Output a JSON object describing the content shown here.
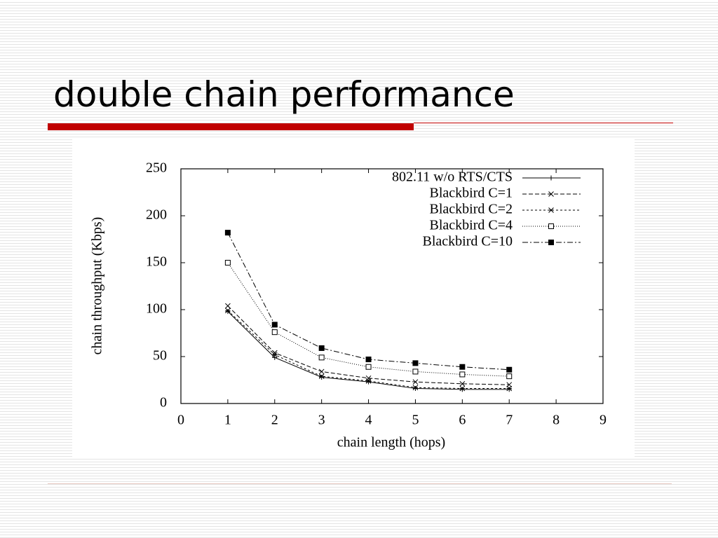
{
  "slide": {
    "title": "double chain performance"
  },
  "chart_data": {
    "type": "line",
    "x_label": "chain length (hops)",
    "y_label": "chain throughput (Kbps)",
    "x": [
      1,
      2,
      3,
      4,
      5,
      6,
      7
    ],
    "series": [
      {
        "name": "802.11 w/o RTS/CTS",
        "color": "#000000",
        "dash": "none",
        "marker": "plus",
        "values": [
          98,
          49,
          28,
          23,
          16,
          15,
          15
        ]
      },
      {
        "name": "Blackbird C=1",
        "color": "#000000",
        "dash": "6,3",
        "marker": "cross",
        "values": [
          104,
          54,
          34,
          27,
          23,
          21,
          20
        ]
      },
      {
        "name": "Blackbird C=2",
        "color": "#000000",
        "dash": "3,3",
        "marker": "star",
        "values": [
          99,
          52,
          29,
          24,
          17,
          16,
          16
        ]
      },
      {
        "name": "Blackbird C=4",
        "color": "#000000",
        "dash": "1,2",
        "marker": "square-open",
        "values": [
          150,
          76,
          49,
          39,
          34,
          31,
          29
        ]
      },
      {
        "name": "Blackbird C=10",
        "color": "#000000",
        "dash": "8,3,2,3",
        "marker": "square-filled",
        "values": [
          182,
          84,
          59,
          47,
          43,
          39,
          36
        ]
      }
    ],
    "xlim": [
      0,
      9
    ],
    "xticks": [
      0,
      1,
      2,
      3,
      4,
      5,
      6,
      7,
      8,
      9
    ],
    "ylim": [
      0,
      250
    ],
    "yticks": [
      0,
      50,
      100,
      150,
      200,
      250
    ],
    "legend": "top-right",
    "grid": false
  }
}
